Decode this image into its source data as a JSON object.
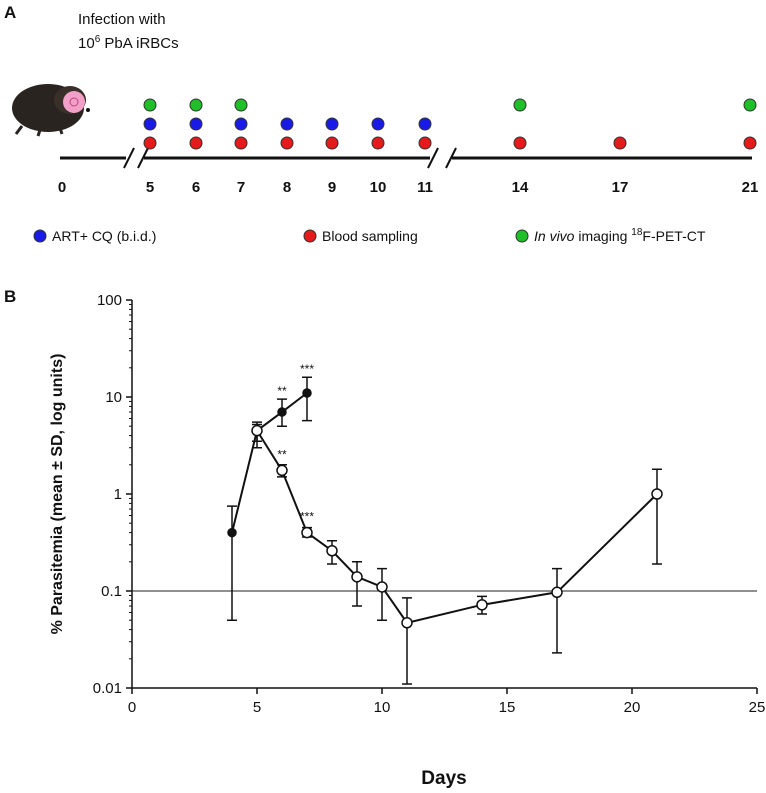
{
  "panel_a": {
    "label": "A",
    "infection": {
      "line1": "Infection with",
      "base": "10",
      "sup": "6",
      "rest": " PbA iRBCs"
    },
    "days": [
      0,
      5,
      6,
      7,
      8,
      9,
      10,
      11,
      14,
      17,
      21
    ],
    "events": [
      {
        "color": "#1fbf2a",
        "days": [
          5,
          6,
          7,
          14,
          21
        ]
      },
      {
        "color": "#1a1ae6",
        "days": [
          5,
          6,
          7,
          8,
          9,
          10,
          11
        ]
      },
      {
        "color": "#e61a1a",
        "days": [
          5,
          6,
          7,
          8,
          9,
          10,
          11,
          14,
          17,
          21
        ]
      }
    ],
    "legend": {
      "treatment": "ART+ CQ (b.i.d.)",
      "blood": "Blood sampling",
      "imaging_italic": "In vivo",
      "imaging_mid": " imaging ",
      "imaging_sup": "18",
      "imaging_rest": "F-PET-CT"
    }
  },
  "chart_data": {
    "type": "line",
    "panel_label": "B",
    "x_label": "Days",
    "y_label": "% Parasitemia (mean ± SD, log units)",
    "log_y": true,
    "xlim": [
      0,
      25
    ],
    "xticks": [
      0,
      5,
      10,
      15,
      20,
      25
    ],
    "ylim": [
      0.01,
      100
    ],
    "yticks": [
      0.01,
      0.1,
      1,
      10,
      100
    ],
    "hline": 0.1,
    "series": [
      {
        "color": "#111111",
        "marker_fill": "#111111",
        "x": [
          4,
          5,
          6,
          7
        ],
        "values": [
          0.4,
          4.5,
          7,
          11
        ],
        "lower": [
          0.05,
          3,
          5,
          5.7
        ],
        "upper": [
          0.75,
          5.5,
          9.5,
          16
        ],
        "significance": [
          null,
          null,
          "**",
          "***"
        ]
      },
      {
        "color": "#111111",
        "marker_fill": "#ffffff",
        "x": [
          5,
          6,
          7,
          8,
          9,
          10,
          11,
          14,
          17,
          21
        ],
        "values": [
          4.5,
          1.75,
          0.4,
          0.26,
          0.14,
          0.11,
          0.047,
          0.072,
          0.097,
          1.0
        ],
        "lower": [
          3.5,
          1.5,
          0.36,
          0.19,
          0.07,
          0.05,
          0.011,
          0.058,
          0.023,
          0.19
        ],
        "upper": [
          5.2,
          2,
          0.45,
          0.33,
          0.2,
          0.17,
          0.085,
          0.088,
          0.17,
          1.8
        ],
        "significance": [
          null,
          "**",
          "***",
          null,
          null,
          null,
          null,
          null,
          null,
          null
        ]
      }
    ]
  }
}
